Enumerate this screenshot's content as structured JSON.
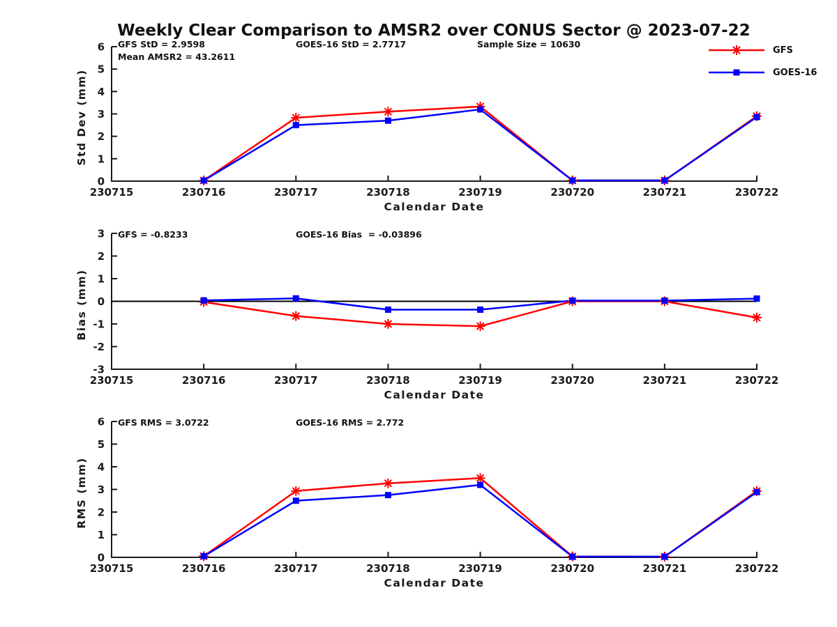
{
  "title": "Weekly Clear Comparison to AMSR2 over CONUS Sector @ 2023-07-22",
  "colors": {
    "gfs": "#ff0000",
    "goes16": "#0000ff",
    "axis": "#1a1a1a",
    "zero_line": "#000000",
    "background": "#ffffff"
  },
  "legend": {
    "entries": [
      {
        "label": "GFS",
        "color": "#ff0000",
        "marker": "asterisk"
      },
      {
        "label": "GOES-16",
        "color": "#0000ff",
        "marker": "square"
      }
    ]
  },
  "chart_data": [
    {
      "type": "line",
      "panel": "std_dev",
      "xlabel": "Calendar Date",
      "ylabel": "Std Dev (mm)",
      "ylim": [
        0,
        6
      ],
      "yticks": [
        0,
        1,
        2,
        3,
        4,
        5,
        6
      ],
      "grid": false,
      "categories": [
        "230715",
        "230716",
        "230717",
        "230718",
        "230719",
        "230720",
        "230721",
        "230722"
      ],
      "annotations": [
        "GFS StD = 2.9598",
        "Mean AMSR2 = 43.2611",
        "GOES-16 StD = 2.7717",
        "Sample Size = 10630"
      ],
      "series": [
        {
          "name": "GFS",
          "color": "#ff0000",
          "marker": "asterisk",
          "x": [
            "230716",
            "230717",
            "230718",
            "230719",
            "230720",
            "230721",
            "230722"
          ],
          "values": [
            0.03,
            2.83,
            3.1,
            3.33,
            0.03,
            0.03,
            2.9
          ]
        },
        {
          "name": "GOES-16",
          "color": "#0000ff",
          "marker": "square",
          "x": [
            "230716",
            "230717",
            "230718",
            "230719",
            "230720",
            "230721",
            "230722"
          ],
          "values": [
            0.03,
            2.5,
            2.7,
            3.2,
            0.03,
            0.03,
            2.86
          ]
        }
      ]
    },
    {
      "type": "line",
      "panel": "bias",
      "xlabel": "Calendar Date",
      "ylabel": "Bias (mm)",
      "ylim": [
        -3,
        3
      ],
      "yticks": [
        -3,
        -2,
        -1,
        0,
        1,
        2,
        3
      ],
      "zero_line": true,
      "grid": false,
      "categories": [
        "230715",
        "230716",
        "230717",
        "230718",
        "230719",
        "230720",
        "230721",
        "230722"
      ],
      "annotations": [
        "GFS = -0.8233",
        "GOES-16 Bias  = -0.03896"
      ],
      "series": [
        {
          "name": "GFS",
          "color": "#ff0000",
          "marker": "asterisk",
          "x": [
            "230716",
            "230717",
            "230718",
            "230719",
            "230720",
            "230721",
            "230722"
          ],
          "values": [
            -0.03,
            -0.65,
            -1.0,
            -1.1,
            0.0,
            0.0,
            -0.72
          ]
        },
        {
          "name": "GOES-16",
          "color": "#0000ff",
          "marker": "square",
          "x": [
            "230716",
            "230717",
            "230718",
            "230719",
            "230720",
            "230721",
            "230722"
          ],
          "values": [
            0.04,
            0.13,
            -0.37,
            -0.37,
            0.03,
            0.03,
            0.12
          ]
        }
      ]
    },
    {
      "type": "line",
      "panel": "rms",
      "xlabel": "Calendar Date",
      "ylabel": "RMS (mm)",
      "ylim": [
        0,
        6
      ],
      "yticks": [
        0,
        1,
        2,
        3,
        4,
        5,
        6
      ],
      "grid": false,
      "categories": [
        "230715",
        "230716",
        "230717",
        "230718",
        "230719",
        "230720",
        "230721",
        "230722"
      ],
      "annotations": [
        "GFS RMS = 3.0722",
        "GOES-16 RMS = 2.772"
      ],
      "series": [
        {
          "name": "GFS",
          "color": "#ff0000",
          "marker": "asterisk",
          "x": [
            "230716",
            "230717",
            "230718",
            "230719",
            "230720",
            "230721",
            "230722"
          ],
          "values": [
            0.05,
            2.93,
            3.27,
            3.5,
            0.04,
            0.03,
            2.93
          ]
        },
        {
          "name": "GOES-16",
          "color": "#0000ff",
          "marker": "square",
          "x": [
            "230716",
            "230717",
            "230718",
            "230719",
            "230720",
            "230721",
            "230722"
          ],
          "values": [
            0.05,
            2.5,
            2.75,
            3.2,
            0.03,
            0.03,
            2.88
          ]
        }
      ]
    }
  ]
}
